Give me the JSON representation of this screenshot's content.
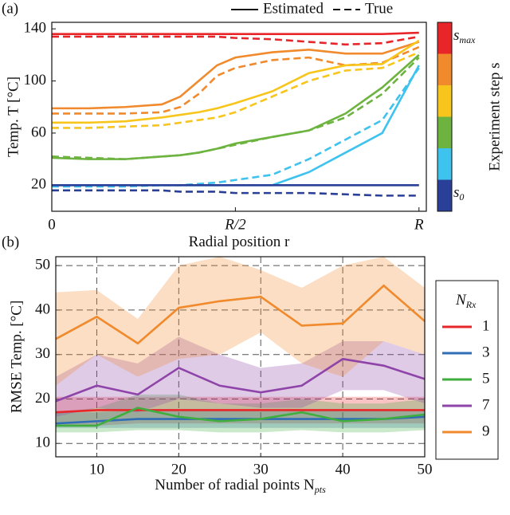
{
  "chart_data": [
    {
      "type": "line",
      "panel_label": "(a)",
      "ylabel": "Temp. T [°C]",
      "xlabel": "Radial position r",
      "style_legend": [
        {
          "label": "Estimated",
          "dashed": false
        },
        {
          "label": "True",
          "dashed": true
        }
      ],
      "colorbar": {
        "label": "Experiment step s",
        "colors": [
          "#e8262a",
          "#f08a2c",
          "#f7c51c",
          "#6cb33f",
          "#3ec2ee",
          "#2a3f98"
        ],
        "top_label": {
          "symbol": "s",
          "sub": "max"
        },
        "bottom_label": {
          "symbol": "s",
          "sub": "0"
        }
      },
      "x": [
        0,
        0.1,
        0.2,
        0.3,
        0.35,
        0.4,
        0.45,
        0.5,
        0.6,
        0.7,
        0.8,
        0.9,
        1.0
      ],
      "xlim": [
        0,
        1.02
      ],
      "ylim": [
        0,
        145
      ],
      "xticks": [
        0,
        {
          "value": 0.5,
          "label": "R/2"
        },
        {
          "value": 1,
          "label": "R"
        }
      ],
      "yticks": [
        20,
        60,
        100,
        140
      ],
      "series": [
        {
          "color": "#e8262a",
          "dashed": false,
          "values": [
            136,
            136,
            136,
            136,
            136,
            136,
            136,
            136,
            136,
            136,
            136,
            136,
            137
          ]
        },
        {
          "color": "#e8262a",
          "dashed": true,
          "values": [
            134,
            134,
            134,
            134,
            134,
            134,
            134,
            133,
            132,
            130,
            128,
            129,
            134
          ]
        },
        {
          "color": "#f08a2c",
          "dashed": false,
          "values": [
            79,
            79,
            80,
            82,
            88,
            100,
            112,
            118,
            122,
            124,
            121,
            121,
            130
          ]
        },
        {
          "color": "#f08a2c",
          "dashed": true,
          "values": [
            75,
            75,
            75,
            76,
            80,
            90,
            104,
            110,
            116,
            118,
            112,
            114,
            126
          ]
        },
        {
          "color": "#f7c51c",
          "dashed": false,
          "values": [
            68,
            68,
            69,
            72,
            74,
            76,
            79,
            83,
            92,
            106,
            112,
            113,
            131
          ]
        },
        {
          "color": "#f7c51c",
          "dashed": true,
          "values": [
            64,
            64,
            65,
            66,
            68,
            70,
            72,
            76,
            88,
            100,
            108,
            110,
            122
          ]
        },
        {
          "color": "#6cb33f",
          "dashed": false,
          "values": [
            41,
            40,
            40,
            42,
            43,
            45,
            48,
            52,
            57,
            62,
            75,
            95,
            120
          ]
        },
        {
          "color": "#6cb33f",
          "dashed": true,
          "values": [
            42,
            41,
            40,
            42,
            43,
            45,
            48,
            51,
            57,
            62,
            72,
            90,
            118
          ]
        },
        {
          "color": "#3ec2ee",
          "dashed": false,
          "values": [
            20,
            20,
            20,
            20,
            20,
            20,
            20,
            20,
            20,
            30,
            45,
            60,
            112
          ]
        },
        {
          "color": "#3ec2ee",
          "dashed": true,
          "values": [
            19,
            19,
            19,
            20,
            20,
            21,
            22,
            24,
            28,
            40,
            55,
            70,
            110
          ]
        },
        {
          "color": "#2a3f98",
          "dashed": false,
          "values": [
            20,
            20,
            20,
            20,
            20,
            20,
            20,
            20,
            20,
            20,
            20,
            20,
            20
          ]
        },
        {
          "color": "#2a3f98",
          "dashed": true,
          "values": [
            16,
            16,
            16,
            16,
            15,
            15,
            15,
            14,
            14,
            14,
            13,
            12,
            12
          ]
        }
      ]
    },
    {
      "type": "line",
      "panel_label": "(b)",
      "ylabel": "RMSE Temp. [°C]",
      "xlabel": "Number of radial points N",
      "xlabel_sub": "pts",
      "legend_title": {
        "symbol": "N",
        "sub": "Rx"
      },
      "x": [
        5,
        10,
        15,
        20,
        25,
        30,
        35,
        40,
        45,
        50
      ],
      "xlim": [
        5,
        50
      ],
      "ylim": [
        7,
        52
      ],
      "xticks": [
        10,
        20,
        30,
        40,
        50
      ],
      "yticks": [
        10,
        20,
        30,
        40,
        50
      ],
      "grid": true,
      "series": [
        {
          "name": "1",
          "color": "#e8262a",
          "values": [
            17,
            17.5,
            17.5,
            17.5,
            17.5,
            17.5,
            17.5,
            17.5,
            17.5,
            17.5
          ],
          "lower": [
            14,
            14,
            14.5,
            14.5,
            14.5,
            14.5,
            14.5,
            14.5,
            14.5,
            14.5
          ],
          "upper": [
            20.5,
            20.5,
            20.5,
            20.5,
            20.5,
            20.5,
            20.5,
            20.5,
            20.5,
            20.5
          ]
        },
        {
          "name": "3",
          "color": "#2f6db5",
          "values": [
            14.5,
            15,
            15.5,
            15.5,
            15.5,
            15.5,
            15.5,
            15.5,
            15.5,
            16
          ],
          "lower": [
            13.5,
            13.5,
            13.5,
            13.5,
            13.5,
            13.5,
            13.5,
            13.5,
            13.5,
            13.5
          ],
          "upper": [
            17,
            17,
            17.5,
            17.5,
            17.5,
            17.5,
            17.5,
            17.5,
            17.5,
            17.5
          ]
        },
        {
          "name": "5",
          "color": "#3fae3f",
          "values": [
            14,
            14,
            18,
            16,
            15,
            15.5,
            17,
            15,
            15.5,
            16.5
          ],
          "lower": [
            12.5,
            12.5,
            13,
            13,
            12.5,
            12.5,
            13,
            12.5,
            12.5,
            13
          ],
          "upper": [
            17,
            18,
            21,
            21,
            19,
            19,
            20,
            19,
            19,
            20
          ]
        },
        {
          "name": "7",
          "color": "#8e44a8",
          "values": [
            19.5,
            23,
            21,
            27,
            23,
            21.5,
            23,
            29,
            27.5,
            24.5
          ],
          "lower": [
            16,
            18,
            17,
            20,
            19,
            18,
            18,
            22,
            22,
            19
          ],
          "upper": [
            25,
            30,
            28,
            34,
            30,
            27,
            28,
            33,
            33,
            30
          ]
        },
        {
          "name": "9",
          "color": "#f08a2c",
          "values": [
            33.5,
            38.5,
            32.5,
            40.5,
            42,
            43,
            36.5,
            37,
            45.5,
            37.5
          ],
          "lower": [
            23,
            30,
            25,
            29,
            30,
            35,
            28,
            25,
            33,
            30
          ],
          "upper": [
            44,
            44.5,
            38,
            50,
            52,
            49,
            45,
            50,
            52,
            45
          ]
        }
      ]
    }
  ]
}
